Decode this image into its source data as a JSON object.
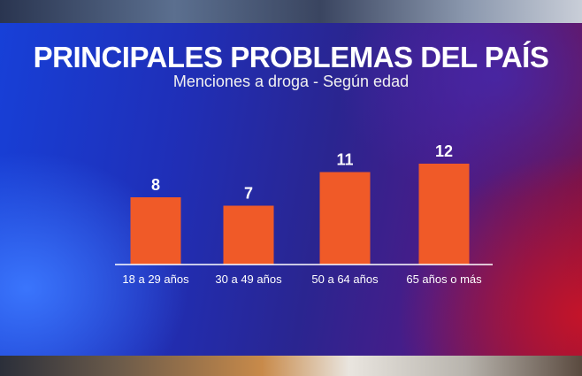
{
  "header": {
    "title": "PRINCIPALES PROBLEMAS DEL PAÍS",
    "subtitle": "Menciones a droga - Según edad"
  },
  "colors": {
    "bar": "#f05a28",
    "axis": "#ffffff",
    "text": "#ffffff"
  },
  "chart_data": {
    "type": "bar",
    "title": "PRINCIPALES PROBLEMAS DEL PAÍS",
    "subtitle": "Menciones a droga - Según edad",
    "categories": [
      "18 a 29 años",
      "30 a 49 años",
      "50 a 64 años",
      "65 años o más"
    ],
    "values": [
      8,
      7,
      11,
      12
    ],
    "data_labels": [
      "8",
      "7",
      "11",
      "12"
    ],
    "xlabel": "",
    "ylabel": "",
    "ylim": [
      0,
      12
    ],
    "grid": false,
    "legend": "none"
  }
}
